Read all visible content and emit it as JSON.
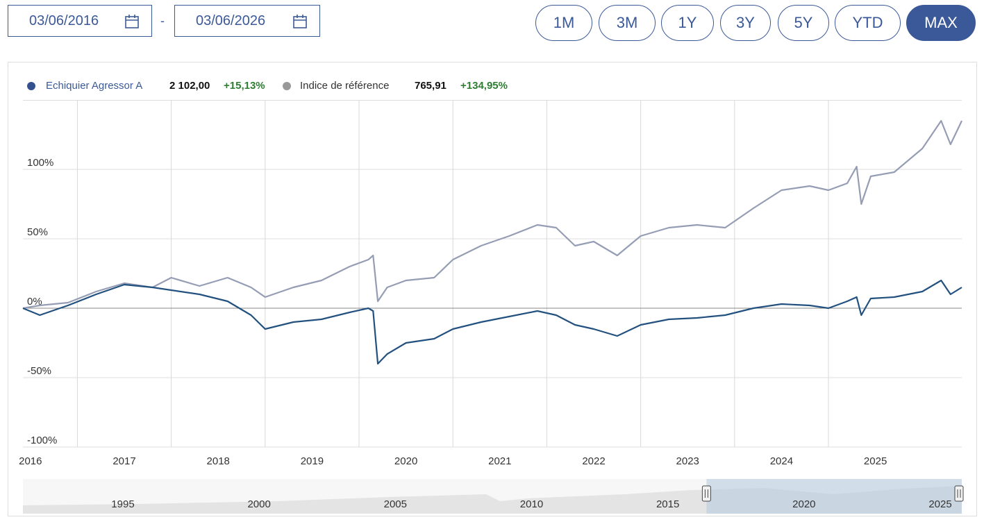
{
  "controls": {
    "start_date": "03/06/2016",
    "separator": "-",
    "end_date": "03/06/2026",
    "ranges": [
      "1M",
      "3M",
      "1Y",
      "3Y",
      "5Y",
      "YTD",
      "MAX"
    ],
    "active_range": 6
  },
  "chart_data": {
    "type": "line",
    "x": [
      2016.42,
      2016.6,
      2016.9,
      2017.2,
      2017.5,
      2017.8,
      2018.0,
      2018.3,
      2018.6,
      2018.85,
      2019.0,
      2019.3,
      2019.6,
      2019.9,
      2020.1,
      2020.15,
      2020.2,
      2020.3,
      2020.5,
      2020.8,
      2021.0,
      2021.3,
      2021.6,
      2021.9,
      2022.1,
      2022.3,
      2022.5,
      2022.75,
      2023.0,
      2023.3,
      2023.6,
      2023.9,
      2024.2,
      2024.5,
      2024.8,
      2025.0,
      2025.2,
      2025.3,
      2025.35,
      2025.45,
      2025.7,
      2026.0,
      2026.2,
      2026.3,
      2026.42
    ],
    "series": [
      {
        "name": "Echiquier Agressor A",
        "color": "#22517f",
        "last_value": "2 102,00",
        "change": "+15,13%",
        "values": [
          0,
          -5,
          2,
          10,
          17,
          15,
          13,
          10,
          5,
          -5,
          -15,
          -10,
          -8,
          -3,
          0,
          -2,
          -40,
          -33,
          -25,
          -22,
          -15,
          -10,
          -6,
          -2,
          -5,
          -12,
          -15,
          -20,
          -12,
          -8,
          -7,
          -5,
          0,
          3,
          2,
          0,
          5,
          8,
          -5,
          7,
          8,
          12,
          20,
          10,
          15
        ]
      },
      {
        "name": "Indice de référence",
        "color": "#959db4",
        "last_value": "765,91",
        "change": "+134,95%",
        "values": [
          0,
          2,
          4,
          12,
          18,
          15,
          22,
          16,
          22,
          15,
          8,
          15,
          20,
          30,
          35,
          38,
          5,
          15,
          20,
          22,
          35,
          45,
          52,
          60,
          58,
          45,
          48,
          38,
          52,
          58,
          60,
          58,
          72,
          85,
          88,
          85,
          90,
          102,
          75,
          95,
          98,
          115,
          135,
          118,
          135
        ]
      }
    ],
    "xlim": [
      2016.42,
      2026.42
    ],
    "xticks": [
      2016,
      2017,
      2018,
      2019,
      2020,
      2021,
      2022,
      2023,
      2024,
      2025
    ],
    "ylim": [
      -100,
      150
    ],
    "yticks": [
      {
        "value": -100,
        "label": "-100%"
      },
      {
        "value": -50,
        "label": "-50%"
      },
      {
        "value": 0,
        "label": "0%"
      },
      {
        "value": 50,
        "label": "50%"
      },
      {
        "value": 100,
        "label": "100%"
      }
    ],
    "grid": true,
    "navigator": {
      "xlim": [
        1991.33,
        2025.79
      ],
      "xticks": [
        1995,
        2000,
        2005,
        2010,
        2015,
        2020,
        2025
      ]
    }
  }
}
